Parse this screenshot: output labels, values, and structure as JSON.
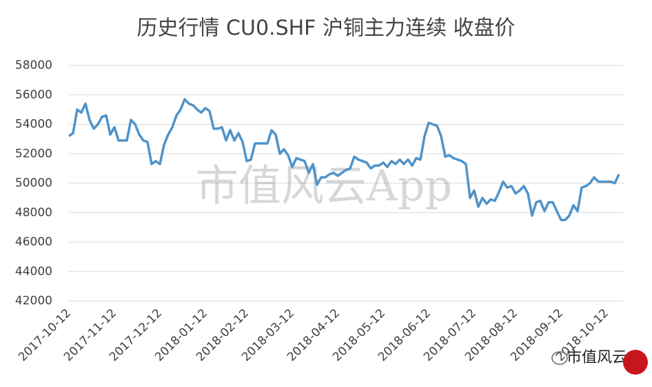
{
  "chart_data": {
    "type": "line",
    "title": "历史行情 CU0.SHF 沪铜主力连续 收盘价",
    "watermark": "市值风云App",
    "logo_text": "市值风云",
    "categories": [
      "2017-10-12",
      null,
      null,
      null,
      null,
      null,
      null,
      null,
      null,
      null,
      null,
      "2017-11-12",
      null,
      null,
      null,
      null,
      null,
      null,
      null,
      null,
      null,
      null,
      "2017-12-12",
      null,
      null,
      null,
      null,
      null,
      null,
      null,
      null,
      null,
      null,
      "2018-01-12",
      null,
      null,
      null,
      null,
      null,
      null,
      null,
      null,
      null,
      "2018-02-12",
      null,
      null,
      null,
      null,
      null,
      null,
      null,
      null,
      null,
      null,
      "2018-03-12",
      null,
      null,
      null,
      null,
      null,
      null,
      null,
      null,
      null,
      null,
      "2018-04-12",
      null,
      null,
      null,
      null,
      null,
      null,
      null,
      null,
      null,
      null,
      "2018-05-12",
      null,
      null,
      null,
      null,
      null,
      null,
      null,
      null,
      null,
      null,
      "2018-06-12",
      null,
      null,
      null,
      null,
      null,
      null,
      null,
      null,
      null,
      null,
      "2018-07-12",
      null,
      null,
      null,
      null,
      null,
      null,
      null,
      null,
      null,
      "2018-08-12",
      null,
      null,
      null,
      null,
      null,
      null,
      null,
      null,
      null,
      null,
      "2018-09-12",
      null,
      null,
      null,
      null,
      null,
      null,
      null,
      null,
      null,
      null,
      "2018-10-12",
      null,
      null,
      null
    ],
    "series": [
      {
        "name": "收盘价",
        "color": "#4f93c9",
        "values": [
          53200,
          53400,
          55000,
          54800,
          55400,
          54300,
          53700,
          54000,
          54500,
          54600,
          53300,
          53800,
          52900,
          52900,
          52900,
          54300,
          54000,
          53300,
          52900,
          52800,
          51300,
          51500,
          51300,
          52600,
          53300,
          53800,
          54600,
          55000,
          55700,
          55400,
          55300,
          55000,
          54800,
          55100,
          54900,
          53700,
          53700,
          53800,
          52900,
          53600,
          52900,
          53400,
          52800,
          51500,
          51600,
          52700,
          52700,
          52700,
          52700,
          53600,
          53300,
          52000,
          52300,
          51900,
          51100,
          51700,
          51600,
          51500,
          50700,
          51300,
          49900,
          50400,
          50400,
          50600,
          50700,
          50500,
          50700,
          50900,
          51000,
          51800,
          51600,
          51500,
          51400,
          51000,
          51200,
          51200,
          51400,
          51100,
          51500,
          51300,
          51600,
          51300,
          51600,
          51200,
          51700,
          51600,
          53200,
          54100,
          54000,
          53900,
          53200,
          51800,
          51900,
          51700,
          51600,
          51500,
          51300,
          49000,
          49500,
          48400,
          49000,
          48600,
          48900,
          48800,
          49400,
          50100,
          49700,
          49800,
          49300,
          49500,
          49800,
          49300,
          47800,
          48700,
          48800,
          48100,
          48700,
          48700,
          48100,
          47500,
          47500,
          47800,
          48500,
          48100,
          49700,
          49800,
          50000,
          50400,
          50100,
          50100,
          50100,
          50100,
          50000,
          50600
        ]
      }
    ],
    "ylim": [
      42000,
      58000
    ],
    "yticks": [
      42000,
      44000,
      46000,
      48000,
      50000,
      52000,
      54000,
      56000,
      58000
    ],
    "grid": true
  }
}
